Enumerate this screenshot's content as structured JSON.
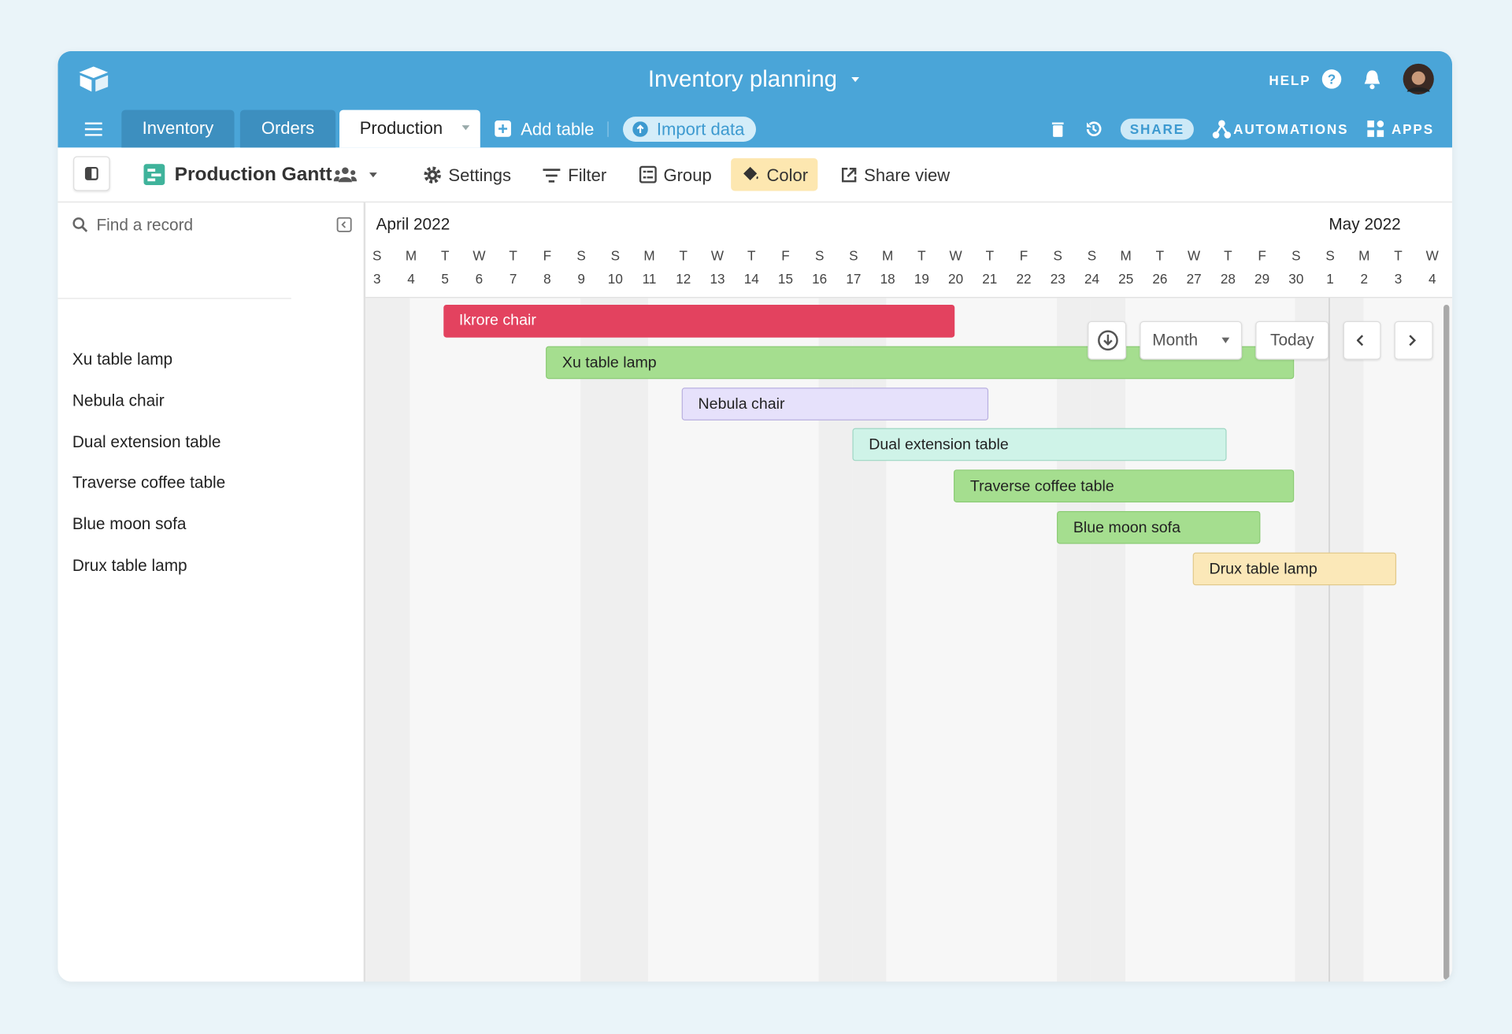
{
  "header": {
    "title": "Inventory planning",
    "help": "HELP",
    "share": "SHARE",
    "automations": "AUTOMATIONS",
    "apps": "APPS"
  },
  "tabs": [
    "Inventory",
    "Orders",
    "Production"
  ],
  "add_table": "Add table",
  "import_data": "Import data",
  "toolbar": {
    "view_name": "Production Gantt",
    "settings": "Settings",
    "filter": "Filter",
    "group": "Group",
    "color": "Color",
    "share_view": "Share view"
  },
  "search_placeholder": "Find a record",
  "months": [
    "April 2022",
    "May 2022"
  ],
  "days": [
    {
      "letter": "S",
      "number": 3
    },
    {
      "letter": "M",
      "number": 4
    },
    {
      "letter": "T",
      "number": 5
    },
    {
      "letter": "W",
      "number": 6
    },
    {
      "letter": "T",
      "number": 7
    },
    {
      "letter": "F",
      "number": 8
    },
    {
      "letter": "S",
      "number": 9
    },
    {
      "letter": "S",
      "number": 10
    },
    {
      "letter": "M",
      "number": 11
    },
    {
      "letter": "T",
      "number": 12
    },
    {
      "letter": "W",
      "number": 13
    },
    {
      "letter": "T",
      "number": 14
    },
    {
      "letter": "F",
      "number": 15
    },
    {
      "letter": "S",
      "number": 16
    },
    {
      "letter": "S",
      "number": 17
    },
    {
      "letter": "M",
      "number": 18
    },
    {
      "letter": "T",
      "number": 19
    },
    {
      "letter": "W",
      "number": 20
    },
    {
      "letter": "T",
      "number": 21
    },
    {
      "letter": "F",
      "number": 22
    },
    {
      "letter": "S",
      "number": 23
    },
    {
      "letter": "S",
      "number": 24
    },
    {
      "letter": "M",
      "number": 25
    },
    {
      "letter": "T",
      "number": 26
    },
    {
      "letter": "W",
      "number": 27
    },
    {
      "letter": "T",
      "number": 28
    },
    {
      "letter": "F",
      "number": 29
    },
    {
      "letter": "S",
      "number": 30
    },
    {
      "letter": "S",
      "number": 1
    },
    {
      "letter": "M",
      "number": 2
    },
    {
      "letter": "T",
      "number": 3
    },
    {
      "letter": "W",
      "number": 4
    }
  ],
  "records": [
    "Xu table lamp",
    "Nebula chair",
    "Dual extension table",
    "Traverse coffee table",
    "Blue moon sofa",
    "Drux table lamp"
  ],
  "bars": [
    "Ikrore chair",
    "Xu table lamp",
    "Nebula chair",
    "Dual extension table",
    "Traverse coffee table",
    "Blue moon sofa",
    "Drux table lamp"
  ],
  "controls": {
    "range": "Month",
    "today": "Today"
  }
}
